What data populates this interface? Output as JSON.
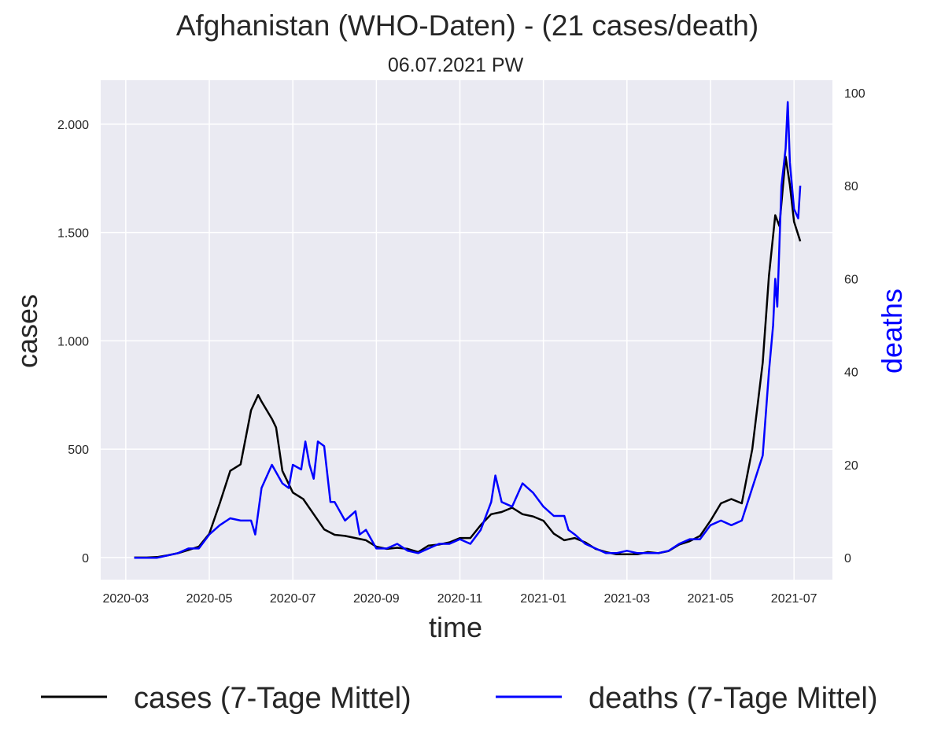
{
  "chart_data": {
    "type": "line",
    "title": "Afghanistan (WHO-Daten) - (21 cases/death)",
    "subtitle": "06.07.2021 PW",
    "xlabel": "time",
    "ylabel": "cases",
    "y2label": "deaths",
    "y2label_color": "#0000ff",
    "background": "#eaeaf2",
    "grid": true,
    "legend": "bottom",
    "xlim": [
      -0.6,
      16.92
    ],
    "xticks": [
      {
        "value": 0,
        "label": "2020-03"
      },
      {
        "value": 2,
        "label": "2020-05"
      },
      {
        "value": 4,
        "label": "2020-07"
      },
      {
        "value": 6,
        "label": "2020-09"
      },
      {
        "value": 8,
        "label": "2020-11"
      },
      {
        "value": 10,
        "label": "2021-01"
      },
      {
        "value": 12,
        "label": "2021-03"
      },
      {
        "value": 14,
        "label": "2021-05"
      },
      {
        "value": 16,
        "label": "2021-07"
      }
    ],
    "ylim": [
      -102,
      2203
    ],
    "yticks": [
      0,
      500,
      {
        "value": 1000,
        "label": "1.000"
      },
      {
        "value": 1500,
        "label": "1.500"
      },
      {
        "value": 2000,
        "label": "2.000"
      }
    ],
    "y2lim": [
      -4.7,
      102.7
    ],
    "y2ticks": [
      0,
      20,
      40,
      60,
      80,
      100
    ],
    "series": [
      {
        "name": "cases (7-Tage Mittel)",
        "color": "#000000",
        "axis": "y",
        "x": [
          0.2,
          0.5,
          0.75,
          1.0,
          1.25,
          1.5,
          1.75,
          2.0,
          2.25,
          2.5,
          2.75,
          3.0,
          3.17,
          3.25,
          3.5,
          3.6,
          3.75,
          4.0,
          4.25,
          4.5,
          4.75,
          5.0,
          5.25,
          5.5,
          5.75,
          6.0,
          6.25,
          6.5,
          6.75,
          7.0,
          7.25,
          7.5,
          7.75,
          8.0,
          8.25,
          8.5,
          8.75,
          9.0,
          9.25,
          9.5,
          9.75,
          10.0,
          10.25,
          10.5,
          10.75,
          11.0,
          11.25,
          11.5,
          11.75,
          12.0,
          12.25,
          12.5,
          12.75,
          13.0,
          13.25,
          13.5,
          13.75,
          14.0,
          14.25,
          14.5,
          14.75,
          15.0,
          15.25,
          15.4,
          15.55,
          15.65,
          15.8,
          15.9,
          16.0,
          16.15
        ],
        "values": [
          0,
          0,
          2,
          10,
          20,
          35,
          50,
          110,
          250,
          400,
          430,
          680,
          750,
          720,
          640,
          600,
          400,
          300,
          270,
          200,
          130,
          105,
          100,
          90,
          80,
          50,
          40,
          45,
          40,
          25,
          55,
          60,
          70,
          90,
          90,
          150,
          200,
          210,
          230,
          200,
          190,
          170,
          110,
          80,
          90,
          70,
          40,
          25,
          15,
          15,
          15,
          25,
          20,
          30,
          60,
          75,
          100,
          170,
          250,
          270,
          250,
          500,
          900,
          1300,
          1580,
          1530,
          1850,
          1720,
          1550,
          1460
        ]
      },
      {
        "name": "deaths (7-Tage Mittel)",
        "color": "#0000ff",
        "axis": "y2",
        "x": [
          0.2,
          0.5,
          0.75,
          1.0,
          1.25,
          1.5,
          1.75,
          2.0,
          2.25,
          2.5,
          2.75,
          3.0,
          3.1,
          3.25,
          3.5,
          3.75,
          3.9,
          4.0,
          4.2,
          4.3,
          4.4,
          4.5,
          4.6,
          4.75,
          4.9,
          5.0,
          5.25,
          5.5,
          5.6,
          5.75,
          6.0,
          6.25,
          6.5,
          6.75,
          7.0,
          7.25,
          7.5,
          7.75,
          8.0,
          8.25,
          8.5,
          8.75,
          8.85,
          9.0,
          9.25,
          9.5,
          9.75,
          10.0,
          10.25,
          10.5,
          10.6,
          10.75,
          11.0,
          11.25,
          11.5,
          11.75,
          12.0,
          12.25,
          12.5,
          12.75,
          13.0,
          13.25,
          13.5,
          13.75,
          14.0,
          14.25,
          14.5,
          14.75,
          15.0,
          15.25,
          15.4,
          15.5,
          15.55,
          15.6,
          15.7,
          15.8,
          15.85,
          15.9,
          16.0,
          16.1,
          16.15
        ],
        "values": [
          0,
          0,
          0,
          0.5,
          1,
          2,
          2,
          5,
          7,
          8.5,
          8,
          8,
          5,
          15,
          20,
          16,
          15,
          20,
          19,
          25,
          20,
          17,
          25,
          24,
          12,
          12,
          8,
          10,
          5,
          6,
          2,
          2,
          3,
          1.5,
          1,
          2,
          3,
          3,
          4,
          3,
          6,
          12,
          17.7,
          12,
          11,
          16,
          14,
          11,
          9,
          9,
          6,
          5,
          3,
          2,
          1,
          1,
          1.5,
          1,
          1,
          1,
          1.5,
          3,
          4,
          4,
          7,
          8,
          7,
          8,
          15,
          22,
          40,
          50,
          60,
          54,
          80,
          88,
          98,
          85,
          75,
          73,
          80
        ]
      }
    ]
  }
}
